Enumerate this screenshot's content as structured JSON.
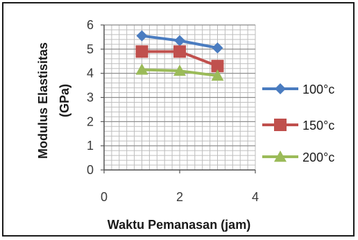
{
  "chart_data": {
    "type": "line",
    "title": "",
    "xlabel": "Waktu Pemanasan (jam)",
    "ylabel_lines": [
      "Modulus Elastisitas",
      "(GPa)"
    ],
    "xlim": [
      0,
      4
    ],
    "ylim": [
      0,
      6
    ],
    "x_ticks": [
      0,
      2,
      4
    ],
    "y_ticks": [
      0,
      1,
      2,
      3,
      4,
      5,
      6
    ],
    "grid": true,
    "legend_position": "right",
    "series": [
      {
        "name": "100°c",
        "x": [
          1,
          2,
          3
        ],
        "y": [
          5.55,
          5.35,
          5.05
        ],
        "color": "#4a7cc0",
        "marker": "diamond"
      },
      {
        "name": "150°c",
        "x": [
          1,
          2,
          3
        ],
        "y": [
          4.9,
          4.9,
          4.3
        ],
        "color": "#c0504d",
        "marker": "square"
      },
      {
        "name": "200°c",
        "x": [
          1,
          2,
          3
        ],
        "y": [
          4.15,
          4.1,
          3.9
        ],
        "color": "#9bbb59",
        "marker": "triangle"
      }
    ]
  }
}
